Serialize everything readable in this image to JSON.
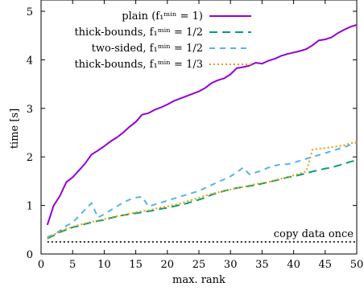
{
  "chart_data": {
    "type": "line",
    "xlabel": "max. rank",
    "ylabel": "time [s]",
    "xlim": [
      0,
      50
    ],
    "ylim": [
      0,
      5
    ],
    "xticks": [
      0,
      5,
      10,
      15,
      20,
      25,
      30,
      35,
      40,
      45,
      50
    ],
    "yticks": [
      0,
      1,
      2,
      3,
      4,
      5
    ],
    "grid": false,
    "legend_position": "top-right",
    "series": [
      {
        "name": "plain (f₁ᵐⁱⁿ = 1)",
        "color": "#9400d3",
        "dash": "solid",
        "x": [
          1,
          2,
          3,
          4,
          5,
          6,
          7,
          8,
          9,
          10,
          11,
          12,
          13,
          14,
          15,
          16,
          17,
          18,
          19,
          20,
          21,
          22,
          23,
          24,
          25,
          26,
          27,
          28,
          29,
          30,
          31,
          32,
          33,
          34,
          35,
          36,
          37,
          38,
          39,
          40,
          41,
          42,
          43,
          44,
          45,
          46,
          47,
          48,
          49,
          50
        ],
        "y": [
          0.6,
          1.0,
          1.2,
          1.48,
          1.58,
          1.72,
          1.87,
          2.05,
          2.13,
          2.22,
          2.32,
          2.4,
          2.5,
          2.62,
          2.72,
          2.87,
          2.9,
          2.97,
          3.02,
          3.08,
          3.15,
          3.2,
          3.25,
          3.3,
          3.35,
          3.42,
          3.52,
          3.58,
          3.62,
          3.7,
          3.83,
          3.85,
          3.88,
          3.94,
          3.92,
          3.98,
          4.02,
          4.08,
          4.12,
          4.15,
          4.18,
          4.22,
          4.3,
          4.4,
          4.42,
          4.46,
          4.55,
          4.62,
          4.68,
          4.72
        ]
      },
      {
        "name": "thick-bounds, f₁ᵐⁱⁿ = 1/2",
        "color": "#009e73",
        "dash": "long",
        "x": [
          1,
          2,
          3,
          4,
          5,
          6,
          7,
          8,
          9,
          10,
          11,
          12,
          13,
          14,
          15,
          16,
          17,
          18,
          19,
          20,
          21,
          22,
          23,
          24,
          25,
          26,
          27,
          28,
          29,
          30,
          31,
          32,
          33,
          34,
          35,
          36,
          37,
          38,
          39,
          40,
          41,
          42,
          43,
          44,
          45,
          46,
          47,
          48,
          49,
          50
        ],
        "y": [
          0.32,
          0.38,
          0.45,
          0.5,
          0.55,
          0.58,
          0.62,
          0.65,
          0.68,
          0.7,
          0.74,
          0.77,
          0.8,
          0.82,
          0.84,
          0.86,
          0.88,
          0.9,
          0.93,
          0.95,
          0.98,
          1.01,
          1.04,
          1.08,
          1.12,
          1.16,
          1.22,
          1.26,
          1.3,
          1.33,
          1.36,
          1.38,
          1.4,
          1.42,
          1.45,
          1.48,
          1.51,
          1.54,
          1.58,
          1.6,
          1.63,
          1.66,
          1.7,
          1.73,
          1.76,
          1.78,
          1.82,
          1.86,
          1.9,
          1.93
        ]
      },
      {
        "name": "two-sided, f₁ᵐⁱⁿ = 1/2",
        "color": "#56b4e9",
        "dash": "dashed",
        "x": [
          1,
          2,
          3,
          4,
          5,
          6,
          7,
          8,
          9,
          10,
          11,
          12,
          13,
          14,
          15,
          16,
          17,
          18,
          19,
          20,
          21,
          22,
          23,
          24,
          25,
          26,
          27,
          28,
          29,
          30,
          31,
          32,
          33,
          34,
          35,
          36,
          37,
          38,
          39,
          40,
          41,
          42,
          43,
          44,
          45,
          46,
          47,
          48,
          49,
          50
        ],
        "y": [
          0.35,
          0.4,
          0.48,
          0.58,
          0.65,
          0.78,
          0.92,
          1.05,
          0.75,
          0.82,
          0.9,
          0.98,
          1.06,
          1.12,
          1.16,
          1.18,
          0.98,
          1.02,
          1.06,
          1.1,
          1.14,
          1.18,
          1.22,
          1.26,
          1.3,
          1.36,
          1.42,
          1.48,
          1.54,
          1.6,
          1.68,
          1.78,
          1.64,
          1.68,
          1.72,
          1.78,
          1.82,
          1.85,
          1.85,
          1.88,
          1.92,
          1.96,
          2.0,
          2.04,
          2.08,
          2.12,
          2.16,
          2.2,
          2.25,
          2.3
        ]
      },
      {
        "name": "thick-bounds, f₁ᵐⁱⁿ = 1/3",
        "color": "#e69f00",
        "dash": "dotted",
        "x": [
          1,
          2,
          3,
          4,
          5,
          6,
          7,
          8,
          9,
          10,
          11,
          12,
          13,
          14,
          15,
          16,
          17,
          18,
          19,
          20,
          21,
          22,
          23,
          24,
          25,
          26,
          27,
          28,
          29,
          30,
          31,
          32,
          33,
          34,
          35,
          36,
          37,
          38,
          39,
          40,
          41,
          42,
          43,
          44,
          45,
          46,
          47,
          48,
          49,
          50
        ],
        "y": [
          0.33,
          0.4,
          0.46,
          0.52,
          0.56,
          0.6,
          0.63,
          0.66,
          0.69,
          0.72,
          0.75,
          0.78,
          0.8,
          0.83,
          0.86,
          0.88,
          0.9,
          0.93,
          0.96,
          0.98,
          1.01,
          1.04,
          1.08,
          1.12,
          1.16,
          1.2,
          1.24,
          1.27,
          1.3,
          1.33,
          1.36,
          1.38,
          1.41,
          1.44,
          1.46,
          1.48,
          1.52,
          1.55,
          1.58,
          1.62,
          1.66,
          1.7,
          2.15,
          2.17,
          2.18,
          2.2,
          2.22,
          2.24,
          2.28,
          2.3
        ]
      }
    ],
    "reference_lines": [
      {
        "label": "copy data once",
        "y": 0.25,
        "color": "#000000",
        "dash": "dotted"
      }
    ]
  }
}
